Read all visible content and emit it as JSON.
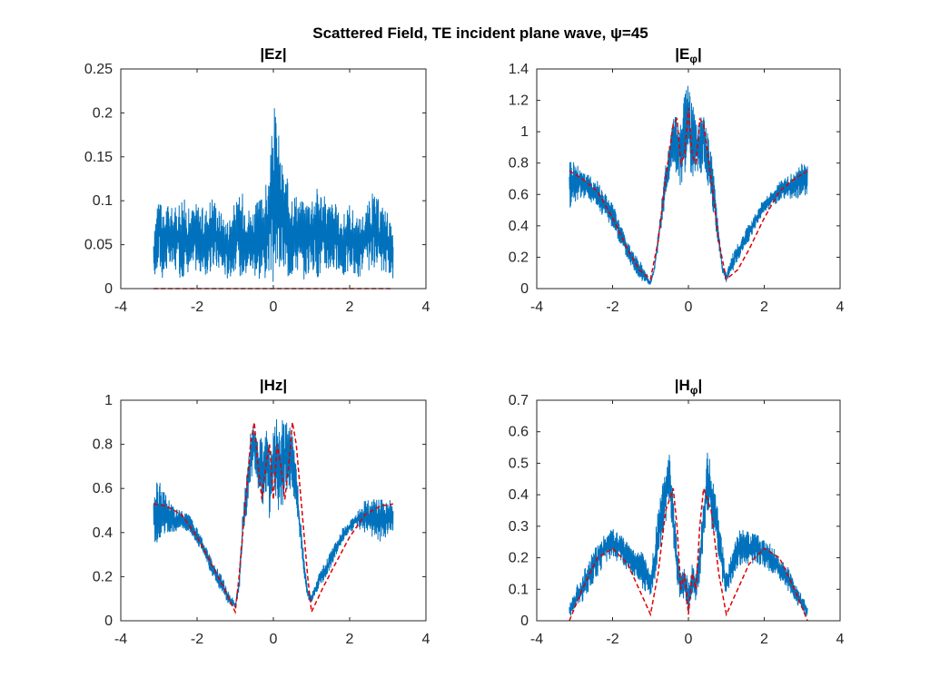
{
  "figure": {
    "title": "Scattered Field, TE incident plane wave, ψ=45"
  },
  "chart_data": [
    {
      "type": "line",
      "title": "|Ez|",
      "xlim": [
        -4,
        4
      ],
      "ylim": [
        0,
        0.25
      ],
      "xticks": [
        "-4",
        "-2",
        "0",
        "2",
        "4"
      ],
      "yticks": [
        "0",
        "0.05",
        "0.1",
        "0.15",
        "0.2",
        "0.25"
      ],
      "series": [
        {
          "style": "solid",
          "color": "#0072bd",
          "x": [
            -3.14,
            -3.0,
            -2.9,
            -2.8,
            -2.6,
            -2.4,
            -2.2,
            -2.0,
            -1.8,
            -1.6,
            -1.4,
            -1.2,
            -1.0,
            -0.8,
            -0.6,
            -0.4,
            -0.2,
            -0.1,
            0.0,
            0.1,
            0.2,
            0.4,
            0.6,
            0.8,
            1.0,
            1.2,
            1.4,
            1.6,
            1.8,
            2.0,
            2.2,
            2.4,
            2.6,
            2.8,
            3.0,
            3.14
          ],
          "upper": [
            0.05,
            0.14,
            0.08,
            0.1,
            0.09,
            0.11,
            0.09,
            0.1,
            0.09,
            0.11,
            0.09,
            0.08,
            0.1,
            0.11,
            0.09,
            0.1,
            0.12,
            0.13,
            0.21,
            0.2,
            0.15,
            0.12,
            0.11,
            0.1,
            0.11,
            0.12,
            0.1,
            0.1,
            0.08,
            0.1,
            0.08,
            0.09,
            0.11,
            0.1,
            0.09,
            0.06
          ],
          "lower": [
            0.01,
            0.02,
            0.01,
            0.02,
            0.02,
            0.01,
            0.02,
            0.02,
            0.01,
            0.02,
            0.02,
            0.01,
            0.02,
            0.01,
            0.02,
            0.01,
            0.01,
            0.02,
            0.0,
            0.01,
            0.02,
            0.01,
            0.02,
            0.01,
            0.02,
            0.01,
            0.02,
            0.02,
            0.01,
            0.02,
            0.01,
            0.02,
            0.02,
            0.01,
            0.02,
            0.01
          ]
        },
        {
          "style": "dashed",
          "color": "#e00000",
          "x": [
            -3.14,
            3.14
          ],
          "y": [
            0.0,
            0.0
          ]
        }
      ]
    },
    {
      "type": "line",
      "title": "|Eφ|",
      "title_main": "|E",
      "title_sub": "φ",
      "title_end": "|",
      "xlim": [
        -4,
        4
      ],
      "ylim": [
        0,
        1.4
      ],
      "xticks": [
        "-4",
        "-2",
        "0",
        "2",
        "4"
      ],
      "yticks": [
        "0",
        "0.2",
        "0.4",
        "0.6",
        "0.8",
        "1",
        "1.2",
        "1.4"
      ],
      "series": [
        {
          "style": "solid",
          "color": "#0072bd",
          "x": [
            -3.14,
            -3.0,
            -2.8,
            -2.6,
            -2.4,
            -2.2,
            -2.0,
            -1.8,
            -1.6,
            -1.4,
            -1.2,
            -1.0,
            -0.9,
            -0.8,
            -0.6,
            -0.4,
            -0.3,
            -0.2,
            -0.1,
            0.0,
            0.1,
            0.2,
            0.3,
            0.4,
            0.6,
            0.8,
            0.9,
            1.0,
            1.2,
            1.4,
            1.6,
            1.8,
            2.0,
            2.2,
            2.4,
            2.6,
            2.8,
            3.0,
            3.14
          ],
          "upper": [
            0.85,
            0.82,
            0.78,
            0.72,
            0.7,
            0.62,
            0.55,
            0.42,
            0.3,
            0.22,
            0.15,
            0.05,
            0.15,
            0.35,
            0.8,
            1.1,
            1.12,
            1.05,
            1.25,
            1.35,
            1.2,
            1.05,
            1.1,
            1.1,
            0.9,
            0.4,
            0.15,
            0.1,
            0.25,
            0.32,
            0.42,
            0.5,
            0.58,
            0.62,
            0.68,
            0.72,
            0.75,
            0.8,
            0.8
          ],
          "lower": [
            0.5,
            0.55,
            0.58,
            0.55,
            0.5,
            0.45,
            0.38,
            0.28,
            0.18,
            0.1,
            0.04,
            0.02,
            0.1,
            0.25,
            0.55,
            0.8,
            0.7,
            0.65,
            0.75,
            0.65,
            0.7,
            0.75,
            0.7,
            0.8,
            0.55,
            0.25,
            0.1,
            0.04,
            0.12,
            0.22,
            0.3,
            0.4,
            0.48,
            0.52,
            0.55,
            0.58,
            0.55,
            0.58,
            0.6
          ]
        },
        {
          "style": "dashed",
          "color": "#e00000",
          "x": [
            -3.14,
            -2.8,
            -2.4,
            -2.0,
            -1.6,
            -1.3,
            -1.0,
            -0.8,
            -0.6,
            -0.4,
            -0.3,
            -0.2,
            -0.1,
            0.0,
            0.1,
            0.2,
            0.3,
            0.4,
            0.6,
            0.8,
            1.0,
            1.3,
            1.6,
            2.0,
            2.4,
            2.8,
            3.14
          ],
          "y": [
            0.75,
            0.7,
            0.62,
            0.45,
            0.25,
            0.12,
            0.06,
            0.3,
            0.7,
            1.05,
            1.08,
            0.8,
            0.85,
            1.15,
            0.85,
            0.8,
            1.08,
            1.05,
            0.7,
            0.3,
            0.06,
            0.12,
            0.25,
            0.45,
            0.62,
            0.7,
            0.75
          ]
        }
      ]
    },
    {
      "type": "line",
      "title": "|Hz|",
      "xlim": [
        -4,
        4
      ],
      "ylim": [
        0,
        1
      ],
      "xticks": [
        "-4",
        "-2",
        "0",
        "2",
        "4"
      ],
      "yticks": [
        "0",
        "0.2",
        "0.4",
        "0.6",
        "0.8",
        "1"
      ],
      "series": [
        {
          "style": "solid",
          "color": "#0072bd",
          "x": [
            -3.14,
            -3.0,
            -2.8,
            -2.6,
            -2.4,
            -2.2,
            -2.0,
            -1.8,
            -1.6,
            -1.4,
            -1.2,
            -1.0,
            -0.9,
            -0.8,
            -0.6,
            -0.5,
            -0.4,
            -0.3,
            -0.2,
            -0.1,
            0.0,
            0.1,
            0.2,
            0.3,
            0.4,
            0.5,
            0.6,
            0.8,
            0.9,
            1.0,
            1.2,
            1.4,
            1.6,
            1.8,
            2.0,
            2.2,
            2.4,
            2.6,
            2.8,
            3.0,
            3.14
          ],
          "upper": [
            0.6,
            0.65,
            0.58,
            0.52,
            0.5,
            0.48,
            0.42,
            0.35,
            0.28,
            0.22,
            0.15,
            0.08,
            0.2,
            0.5,
            0.85,
            0.92,
            0.82,
            0.85,
            0.95,
            0.8,
            0.88,
            0.92,
            0.9,
            0.95,
            0.92,
            0.85,
            0.7,
            0.3,
            0.15,
            0.12,
            0.22,
            0.28,
            0.35,
            0.42,
            0.45,
            0.5,
            0.55,
            0.55,
            0.56,
            0.55,
            0.56
          ],
          "lower": [
            0.35,
            0.35,
            0.38,
            0.4,
            0.42,
            0.4,
            0.35,
            0.28,
            0.2,
            0.14,
            0.08,
            0.05,
            0.12,
            0.35,
            0.6,
            0.7,
            0.55,
            0.5,
            0.55,
            0.45,
            0.6,
            0.48,
            0.5,
            0.55,
            0.58,
            0.6,
            0.5,
            0.2,
            0.1,
            0.08,
            0.15,
            0.2,
            0.28,
            0.35,
            0.4,
            0.42,
            0.4,
            0.38,
            0.35,
            0.38,
            0.4
          ]
        },
        {
          "style": "dashed",
          "color": "#e00000",
          "x": [
            -3.14,
            -2.8,
            -2.4,
            -2.0,
            -1.6,
            -1.3,
            -1.0,
            -0.9,
            -0.8,
            -0.6,
            -0.5,
            -0.4,
            -0.3,
            -0.2,
            -0.1,
            0.0,
            0.1,
            0.2,
            0.3,
            0.4,
            0.5,
            0.6,
            0.8,
            0.9,
            1.0,
            1.3,
            1.6,
            2.0,
            2.4,
            2.8,
            3.14
          ],
          "y": [
            0.53,
            0.52,
            0.48,
            0.38,
            0.25,
            0.15,
            0.04,
            0.2,
            0.4,
            0.8,
            0.9,
            0.7,
            0.55,
            0.7,
            0.8,
            0.55,
            0.8,
            0.7,
            0.55,
            0.7,
            0.9,
            0.8,
            0.4,
            0.2,
            0.04,
            0.15,
            0.25,
            0.38,
            0.48,
            0.52,
            0.53
          ]
        }
      ]
    },
    {
      "type": "line",
      "title": "|Hφ|",
      "title_main": "|H",
      "title_sub": "φ",
      "title_end": "|",
      "xlim": [
        -4,
        4
      ],
      "ylim": [
        0,
        0.7
      ],
      "xticks": [
        "-4",
        "-2",
        "0",
        "2",
        "4"
      ],
      "yticks": [
        "0",
        "0.1",
        "0.2",
        "0.3",
        "0.4",
        "0.5",
        "0.6",
        "0.7"
      ],
      "series": [
        {
          "style": "solid",
          "color": "#0072bd",
          "x": [
            -3.14,
            -3.0,
            -2.8,
            -2.6,
            -2.4,
            -2.2,
            -2.0,
            -1.8,
            -1.6,
            -1.4,
            -1.2,
            -1.0,
            -0.9,
            -0.8,
            -0.6,
            -0.5,
            -0.4,
            -0.3,
            -0.2,
            -0.1,
            0.0,
            0.1,
            0.2,
            0.3,
            0.4,
            0.5,
            0.6,
            0.8,
            0.9,
            1.0,
            1.2,
            1.4,
            1.6,
            1.8,
            2.0,
            2.2,
            2.4,
            2.6,
            2.8,
            3.0,
            3.14
          ],
          "upper": [
            0.05,
            0.1,
            0.15,
            0.2,
            0.25,
            0.28,
            0.3,
            0.28,
            0.25,
            0.22,
            0.22,
            0.15,
            0.25,
            0.35,
            0.5,
            0.53,
            0.4,
            0.25,
            0.15,
            0.18,
            0.12,
            0.18,
            0.15,
            0.25,
            0.4,
            0.55,
            0.5,
            0.35,
            0.25,
            0.15,
            0.25,
            0.3,
            0.28,
            0.28,
            0.26,
            0.24,
            0.2,
            0.18,
            0.12,
            0.08,
            0.05
          ],
          "lower": [
            0.01,
            0.03,
            0.06,
            0.1,
            0.14,
            0.18,
            0.2,
            0.18,
            0.16,
            0.14,
            0.1,
            0.08,
            0.12,
            0.2,
            0.3,
            0.35,
            0.25,
            0.12,
            0.05,
            0.08,
            0.02,
            0.08,
            0.05,
            0.12,
            0.25,
            0.35,
            0.3,
            0.2,
            0.12,
            0.08,
            0.14,
            0.18,
            0.18,
            0.18,
            0.17,
            0.15,
            0.13,
            0.1,
            0.06,
            0.03,
            0.01
          ]
        },
        {
          "style": "dashed",
          "color": "#e00000",
          "x": [
            -3.14,
            -2.8,
            -2.4,
            -2.0,
            -1.6,
            -1.3,
            -1.0,
            -0.8,
            -0.6,
            -0.4,
            -0.3,
            -0.2,
            -0.1,
            0.0,
            0.1,
            0.2,
            0.3,
            0.4,
            0.6,
            0.8,
            1.0,
            1.3,
            1.6,
            2.0,
            2.4,
            2.8,
            3.14
          ],
          "y": [
            0.0,
            0.1,
            0.2,
            0.23,
            0.18,
            0.1,
            0.02,
            0.15,
            0.35,
            0.42,
            0.3,
            0.1,
            0.15,
            0.02,
            0.15,
            0.1,
            0.3,
            0.42,
            0.35,
            0.15,
            0.02,
            0.1,
            0.18,
            0.23,
            0.2,
            0.1,
            0.0
          ]
        }
      ]
    }
  ]
}
